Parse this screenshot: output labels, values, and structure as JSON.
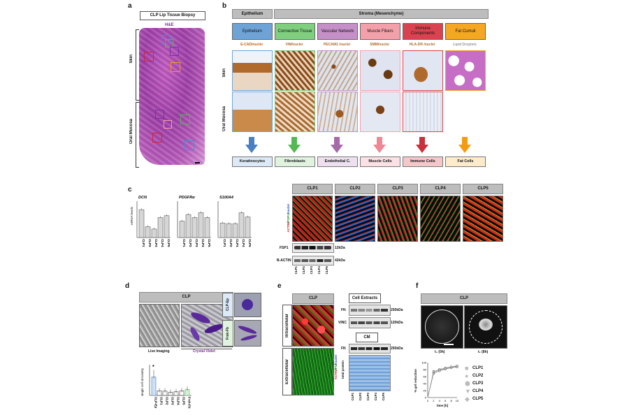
{
  "panels": {
    "a": "a",
    "b": "b",
    "c": "c",
    "d": "d",
    "e": "e",
    "f": "f"
  },
  "a": {
    "title": "CLP Lip Tissue Biopsy",
    "stain": "H&E",
    "region_skin": "Skin",
    "region_oral": "Oral Mucosa"
  },
  "b": {
    "epithelium_header": "Epithelium",
    "stroma_header": "Stroma (Mesenchyme)",
    "categories": [
      {
        "label": "Epithelium",
        "color": "#6ea3d8",
        "marker": "E-CAD/nuclei",
        "cell": "Keratinocytes",
        "cell_bg": "#dce9f6",
        "arrow": "#4a7fc1"
      },
      {
        "label": "Connective Tissue",
        "color": "#7fcf7f",
        "marker": "VIM/nuclei",
        "cell": "Fibroblasts",
        "cell_bg": "#dff3df",
        "arrow": "#55b855"
      },
      {
        "label": "Vascular Network",
        "color": "#c58fc7",
        "marker": "PECAM1 /nuclei",
        "cell": "Endothelial C.",
        "cell_bg": "#efe0f0",
        "arrow": "#a56aa8"
      },
      {
        "label": "Muscle Fibers",
        "color": "#f4a0ab",
        "marker": "SMM/nuclei",
        "cell": "Muscle Cells",
        "cell_bg": "#fbe1e5",
        "arrow": "#ef8795"
      },
      {
        "label": "Immune Components",
        "color": "#d9434f",
        "marker": "HLA-DR /nuclei",
        "cell": "Immune Cells",
        "cell_bg": "#f4c7ca",
        "arrow": "#c9303c"
      },
      {
        "label": "Fat Cumuli",
        "color": "#f5a623",
        "marker": "Lipid Droplets",
        "cell": "Fat Cells",
        "cell_bg": "#fdebcc",
        "arrow": "#f39c12"
      }
    ],
    "row_skin": "Skin",
    "row_oral": "Oral Mucosa"
  },
  "c": {
    "ylabel": "mRNA levels",
    "genes": [
      {
        "name": "DCN",
        "values": [
          0.46,
          0.18,
          0.14,
          0.33,
          0.36
        ]
      },
      {
        "name": "PDGFRα",
        "values": [
          0.27,
          0.38,
          0.33,
          0.41,
          0.33
        ]
      },
      {
        "name": "S100A4",
        "values": [
          0.24,
          0.23,
          0.23,
          0.41,
          0.34
        ]
      }
    ],
    "samples": [
      "CLP1",
      "CLP2",
      "CLP3",
      "CLP4",
      "CLP5"
    ],
    "if_label": "ACTIN/FSP1/nuclei",
    "blot_rows": [
      {
        "name": "FSP1",
        "size": "12kDa"
      },
      {
        "name": "B-ACTIN",
        "size": "42kDa"
      }
    ]
  },
  "d": {
    "header": "CLP",
    "live": "Live Imaging",
    "crystal": "Crystal Violet",
    "side_top": "CLP-Ep",
    "side_bottom": "Frsk-Fb",
    "ylabel": "single cell circularity",
    "star": "*",
    "chart_data": {
      "type": "bar",
      "categories": [
        "CLP-Ep",
        "CLP1",
        "CLP2",
        "CLP3",
        "CLP4",
        "CLP5",
        "Frsk-Fb"
      ],
      "values": [
        0.6,
        0.15,
        0.14,
        0.1,
        0.12,
        0.15,
        0.2
      ],
      "ylim": [
        0,
        1
      ]
    }
  },
  "e": {
    "header": "CLP",
    "intra": "Intracellular",
    "extra": "Extracellular",
    "stain": "ACTIN/FN/nuclei",
    "cell_extracts": "Cell Extracts",
    "cm": "CM",
    "fn": "FN",
    "vinc": "VINC",
    "fn2": "FN",
    "kda250": "250kDa",
    "kda120": "120kDa",
    "kda250b": "250kDa",
    "total_protein": "total protein",
    "samples": [
      "CLP1",
      "CLP2",
      "CLP3",
      "CLP4",
      "CLP5"
    ]
  },
  "f": {
    "header": "CLP",
    "t0": "t₀ (0h)",
    "t1": "t₁ (8h)",
    "ylabel": "% gel reduction",
    "xlabel": "time [h]",
    "legend": [
      "CLP1",
      "CLP2",
      "CLP3",
      "CLP4",
      "CLP5"
    ],
    "chart_data": {
      "type": "line",
      "x": [
        0,
        2,
        4,
        6,
        8,
        10
      ],
      "xticks": [
        "0",
        "2",
        "4",
        "6",
        "8",
        "10"
      ],
      "yticks": [
        "0",
        "20",
        "40",
        "60",
        "80",
        "100"
      ],
      "series": [
        {
          "name": "CLP1",
          "values": [
            0,
            75,
            80,
            85,
            88,
            90
          ]
        },
        {
          "name": "CLP2",
          "values": [
            0,
            70,
            78,
            82,
            86,
            88
          ]
        },
        {
          "name": "CLP3",
          "values": [
            0,
            72,
            79,
            83,
            87,
            89
          ]
        },
        {
          "name": "CLP4",
          "values": [
            0,
            68,
            76,
            81,
            85,
            87
          ]
        },
        {
          "name": "CLP5",
          "values": [
            0,
            74,
            81,
            84,
            88,
            91
          ]
        }
      ],
      "ylim": [
        0,
        100
      ],
      "xlim": [
        0,
        10
      ]
    }
  }
}
